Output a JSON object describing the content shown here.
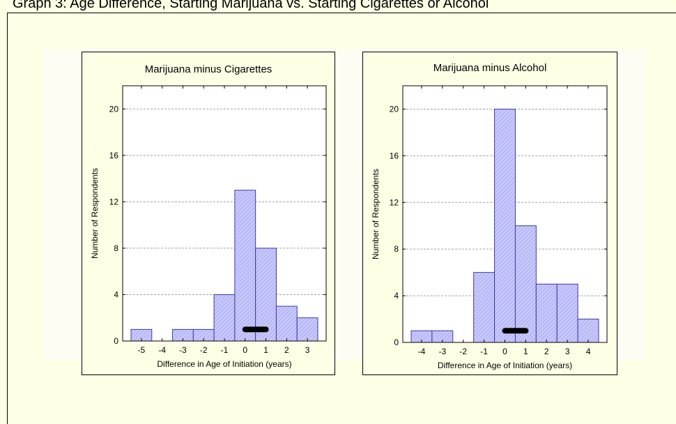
{
  "page_title": "Graph 3: Age Difference, Starting Marijuana vs. Starting Cigarettes or Alcohol",
  "colors": {
    "background": "#ffffe6",
    "bar_fill": "#c8c8ff",
    "bar_stroke": "#3a3aa0",
    "grid": "#a0a0a0",
    "ci_bar": "#000000"
  },
  "chart_data": [
    {
      "type": "bar",
      "title": "Marijuana minus Cigarettes",
      "xlabel": "Difference in Age of Initiation (years)",
      "ylabel": "Number of Respondents",
      "x": [
        -5,
        -4,
        -3,
        -2,
        -1,
        0,
        1,
        2,
        3
      ],
      "values": [
        1,
        0,
        1,
        1,
        4,
        13,
        8,
        3,
        2
      ],
      "yticks": [
        0,
        4,
        8,
        12,
        16,
        20
      ],
      "ylim": [
        0,
        22
      ],
      "grid": true,
      "ci_band": {
        "y": 1,
        "from": 0,
        "to": 1
      }
    },
    {
      "type": "bar",
      "title": "Marijuana minus Alcohol",
      "xlabel": "Difference in Age of Initiation (years)",
      "ylabel": "Number of Respondents",
      "x": [
        -4,
        -3,
        -2,
        -1,
        0,
        1,
        2,
        3,
        4
      ],
      "values": [
        1,
        1,
        0,
        6,
        20,
        10,
        5,
        5,
        2
      ],
      "yticks": [
        0,
        4,
        8,
        12,
        16,
        20
      ],
      "ylim": [
        0,
        22
      ],
      "grid": true,
      "ci_band": {
        "y": 1,
        "from": 0,
        "to": 1
      }
    }
  ]
}
